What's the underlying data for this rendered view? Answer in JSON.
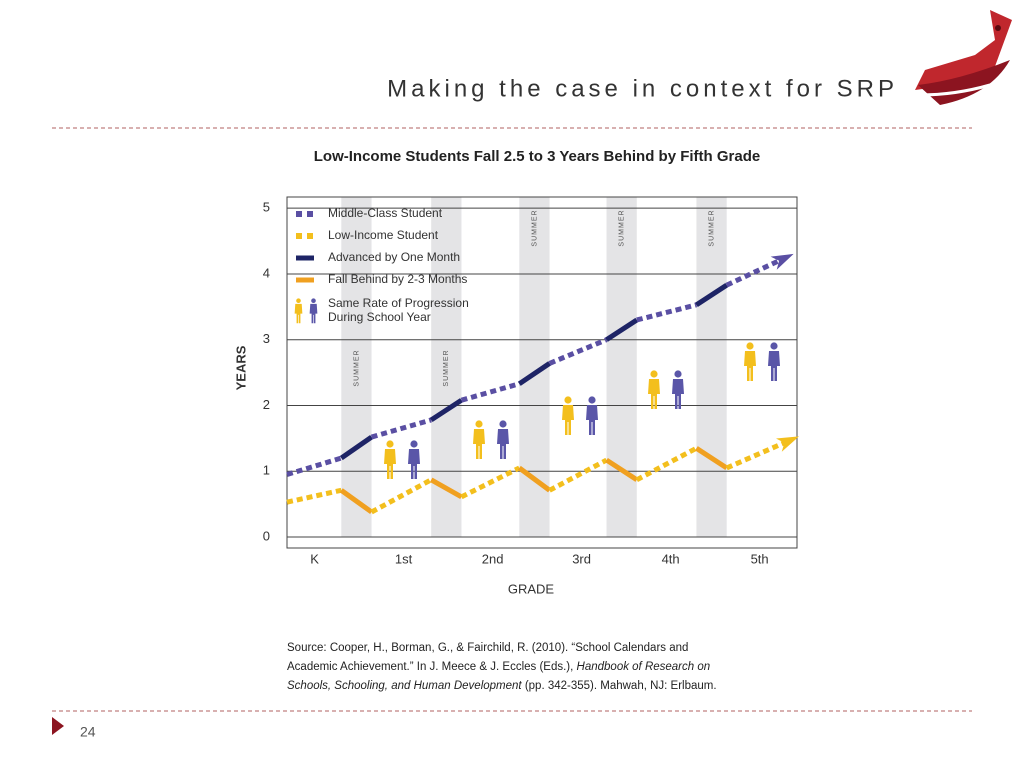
{
  "slide": {
    "title": "Making the case in context for SRP",
    "page_number": "24",
    "source": [
      [
        {
          "text": "Source: Cooper, H., Borman, G., & Fairchild, R. (2010). “School Calendars and",
          "italic": false
        }
      ],
      [
        {
          "text": "Academic Achievement.” In J. Meece & J. Eccles (Eds.), ",
          "italic": false
        },
        {
          "text": "Handbook of Research on",
          "italic": true
        }
      ],
      [
        {
          "text": "Schools, Schooling, and Human Development",
          "italic": true
        },
        {
          "text": " (pp. 342-355). Mahwah, NJ: Erlbaum.",
          "italic": false
        }
      ]
    ]
  },
  "chart_data": {
    "type": "line",
    "title": "Low-Income Students Fall 2.5 to 3 Years Behind by Fifth Grade",
    "x_label": "GRADE",
    "y_label": "YEARS",
    "xlim": [
      -0.31,
      5.42
    ],
    "ylim": [
      0,
      5.17
    ],
    "xticks": [
      {
        "value": 0,
        "label": "K"
      },
      {
        "value": 1,
        "label": "1st"
      },
      {
        "value": 2,
        "label": "2nd"
      },
      {
        "value": 3,
        "label": "3rd"
      },
      {
        "value": 4,
        "label": "4th"
      },
      {
        "value": 5,
        "label": "5th"
      }
    ],
    "yticks": [
      0,
      1,
      2,
      3,
      4,
      5
    ],
    "grid": true,
    "bands": [
      {
        "x": [
          0.3,
          0.64
        ],
        "label": "SUMMER"
      },
      {
        "x": [
          1.31,
          1.65
        ],
        "label": "SUMMER"
      },
      {
        "x": [
          2.3,
          2.64
        ],
        "label": "SUMMER"
      },
      {
        "x": [
          3.28,
          3.62
        ],
        "label": "SUMMER"
      },
      {
        "x": [
          4.29,
          4.63
        ],
        "label": "SUMMER"
      }
    ],
    "series": [
      {
        "name": "Middle-Class Student",
        "color": "#5a4fa3",
        "summer": {
          "name": "Advanced by One Month",
          "color": "#1e2466"
        },
        "x": [
          -0.31,
          0.3,
          0.64,
          1.31,
          1.65,
          2.3,
          2.64,
          3.28,
          3.62,
          4.29,
          4.63,
          5.28
        ],
        "values": [
          0.95,
          1.2,
          1.52,
          1.78,
          2.08,
          2.33,
          2.64,
          3.0,
          3.3,
          3.53,
          3.83,
          4.24
        ]
      },
      {
        "name": "Low-Income Student",
        "color": "#f3bf1d",
        "summer": {
          "name": "Fall Behind by 2-3 Months",
          "color": "#f0a020"
        },
        "x": [
          -0.31,
          0.3,
          0.64,
          1.31,
          1.65,
          2.3,
          2.64,
          3.28,
          3.62,
          4.29,
          4.63,
          5.34
        ],
        "values": [
          0.53,
          0.71,
          0.38,
          0.87,
          0.61,
          1.05,
          0.71,
          1.17,
          0.87,
          1.35,
          1.05,
          1.47
        ]
      }
    ],
    "icon_note": [
      "Same Rate of Progression",
      "During School Year"
    ]
  }
}
